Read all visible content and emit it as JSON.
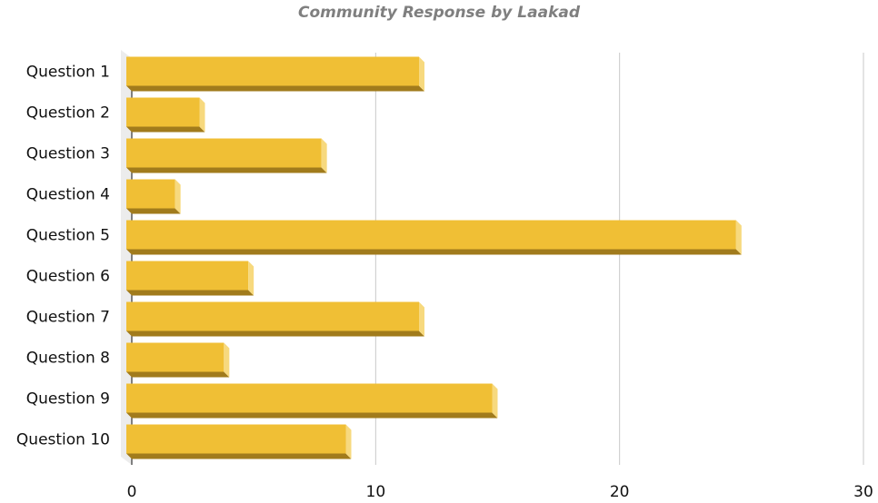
{
  "chart_data": {
    "type": "bar",
    "orientation": "horizontal",
    "title": "Community Response by Laakad",
    "xlabel": "",
    "ylabel": "",
    "categories": [
      "Question 1",
      "Question 2",
      "Question 3",
      "Question 4",
      "Question 5",
      "Question 6",
      "Question 7",
      "Question 8",
      "Question 9",
      "Question 10"
    ],
    "values": [
      12,
      3,
      8,
      2,
      25,
      5,
      12,
      4,
      15,
      9
    ],
    "xlim": [
      0,
      30
    ],
    "xticks": [
      "0",
      "10",
      "20",
      "30"
    ],
    "grid": true,
    "legend": "none",
    "colors": {
      "bar_face": "#f0bf35",
      "bar_bottom": "#a17b1c",
      "bar_side": "#f7d97e",
      "grid": "#c8c8c8",
      "axis": "#333333",
      "title": "#7f7f7f"
    }
  }
}
